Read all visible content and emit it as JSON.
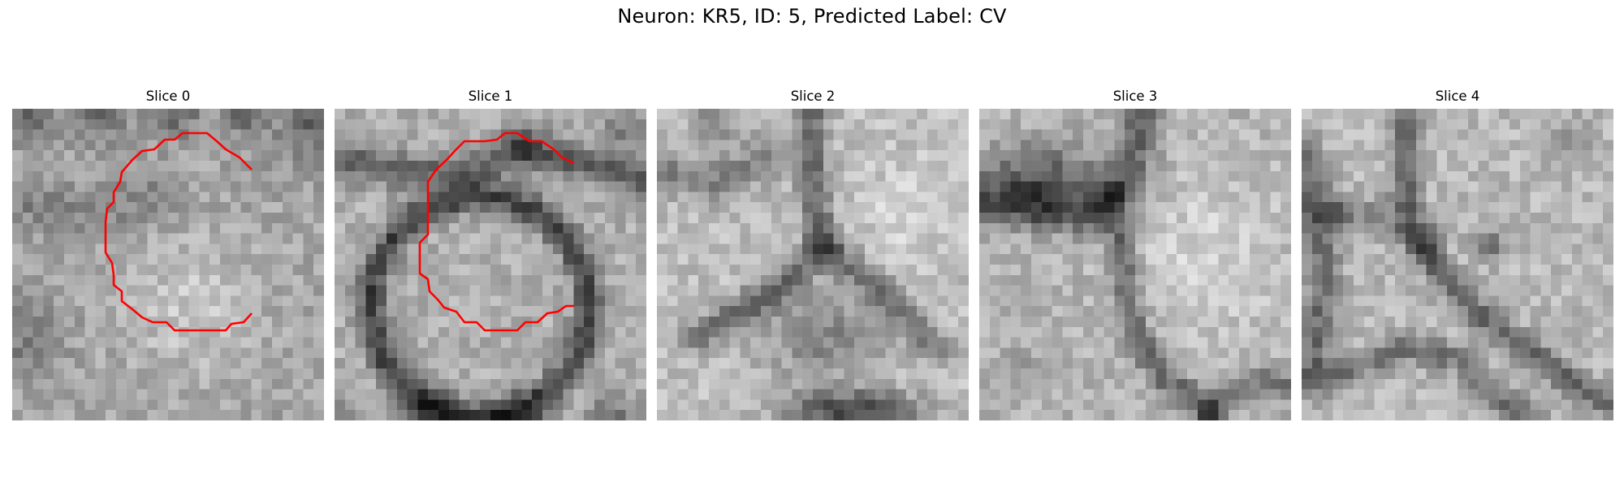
{
  "figure": {
    "title": "Neuron: KR5, ID: 5, Predicted Label: CV"
  },
  "colors": {
    "contour": "#ff0000",
    "background": "#ffffff"
  },
  "slices": [
    {
      "label": "Slice 0",
      "has_contour": true
    },
    {
      "label": "Slice 1",
      "has_contour": true
    },
    {
      "label": "Slice 2",
      "has_contour": false
    },
    {
      "label": "Slice 3",
      "has_contour": false
    },
    {
      "label": "Slice 4",
      "has_contour": false
    }
  ]
}
